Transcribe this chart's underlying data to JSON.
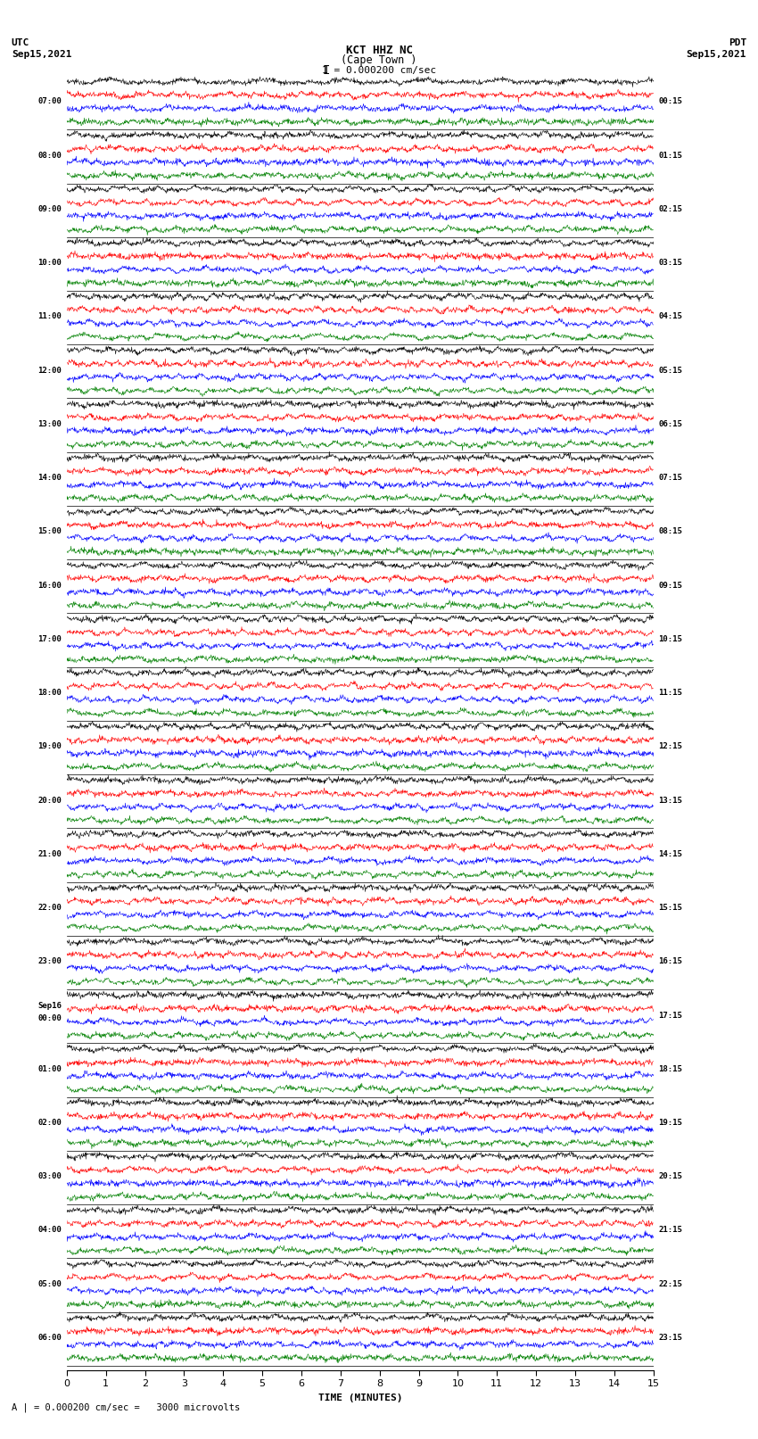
{
  "title_line1": "KCT HHZ NC",
  "title_line2": "(Cape Town )",
  "scale_text": "1 = 0.000200 cm/sec",
  "footer_text": "A | = 0.000200 cm/sec =   3000 microvolts",
  "utc_label": "UTC",
  "utc_date": "Sep15,2021",
  "pdt_label": "PDT",
  "pdt_date": "Sep15,2021",
  "xlabel": "TIME (MINUTES)",
  "left_times_utc": [
    "07:00",
    "08:00",
    "09:00",
    "10:00",
    "11:00",
    "12:00",
    "13:00",
    "14:00",
    "15:00",
    "16:00",
    "17:00",
    "18:00",
    "19:00",
    "20:00",
    "21:00",
    "22:00",
    "23:00",
    "Sep16\n00:00",
    "01:00",
    "02:00",
    "03:00",
    "04:00",
    "05:00",
    "06:00"
  ],
  "right_times_pdt": [
    "00:15",
    "01:15",
    "02:15",
    "03:15",
    "04:15",
    "05:15",
    "06:15",
    "07:15",
    "08:15",
    "09:15",
    "10:15",
    "11:15",
    "12:15",
    "13:15",
    "14:15",
    "15:15",
    "16:15",
    "17:15",
    "18:15",
    "19:15",
    "20:15",
    "21:15",
    "22:15",
    "23:15"
  ],
  "n_traces": 24,
  "trace_duration_minutes": 15,
  "colors": [
    "black",
    "#008000",
    "blue",
    "red"
  ],
  "bg_color": "white",
  "fig_width": 8.5,
  "fig_height": 16.13,
  "dpi": 100,
  "x_ticks": [
    0,
    1,
    2,
    3,
    4,
    5,
    6,
    7,
    8,
    9,
    10,
    11,
    12,
    13,
    14,
    15
  ]
}
